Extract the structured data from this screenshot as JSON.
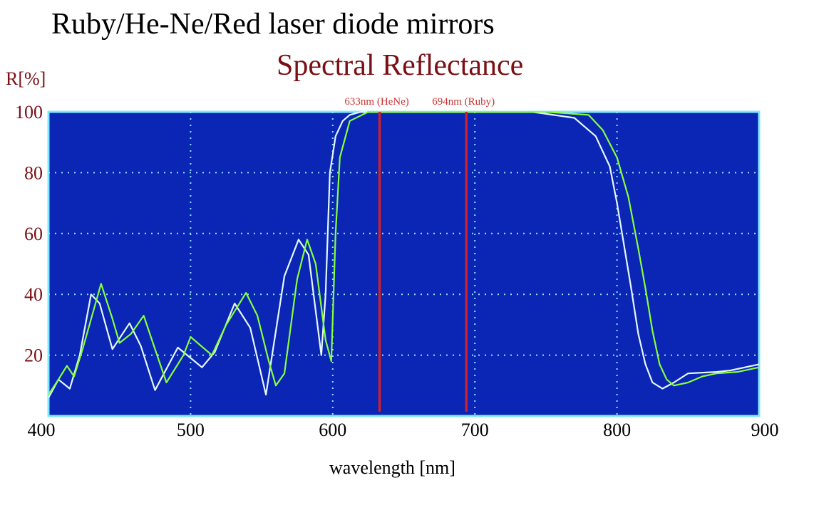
{
  "chart_data": {
    "type": "line",
    "title": "Ruby/He-Ne/Red laser diode mirrors",
    "subtitle": "Spectral Reflectance",
    "xlabel": "wavelength [nm]",
    "ylabel": "R[%]",
    "xlim": [
      400,
      900
    ],
    "ylim": [
      0,
      100
    ],
    "x_ticks": [
      400,
      500,
      600,
      700,
      800,
      900
    ],
    "y_ticks": [
      20,
      40,
      60,
      80,
      100
    ],
    "grid": true,
    "colors": {
      "plot_background": "#0b25b4",
      "grid": "#8fe6ff",
      "frame": "#7fe8ff",
      "series_white": "#e4f8ff",
      "series_green": "#86ff3c",
      "marker_lines": "#d0202a",
      "marker_labels": "#cc3333",
      "subtitle": "#7a0f14",
      "y_tick_labels": "#7a0f14"
    },
    "markers": [
      {
        "x": 633,
        "label": "633nm (HeNe)"
      },
      {
        "x": 694,
        "label": "694nm (Ruby)"
      }
    ],
    "series": [
      {
        "color": "#e4f8ff",
        "x": [
          400,
          407,
          415,
          422,
          430,
          436,
          445,
          457,
          465,
          475,
          491,
          508,
          517,
          531,
          542,
          553,
          566,
          576,
          583,
          592,
          595,
          598,
          602,
          607,
          612,
          620,
          640,
          700,
          740,
          770,
          785,
          795,
          800,
          805,
          810,
          815,
          820,
          825,
          832,
          840,
          850,
          870,
          880,
          900
        ],
        "y": [
          6,
          12,
          9,
          20,
          40,
          37,
          22,
          30.5,
          23,
          8.5,
          22.5,
          16,
          21,
          37,
          29,
          7,
          46,
          58,
          53,
          20,
          40,
          80,
          92,
          97,
          99,
          100,
          100,
          100,
          100,
          98,
          92,
          82,
          70,
          56,
          42,
          27,
          17,
          11,
          9,
          11,
          14,
          14.5,
          15,
          17
        ]
      },
      {
        "color": "#86ff3c",
        "x": [
          400,
          407,
          413,
          418,
          424,
          437,
          445,
          450,
          458,
          467,
          475,
          483,
          495,
          500,
          510,
          515,
          525,
          539,
          547,
          555,
          560,
          566,
          575,
          582,
          588,
          595,
          599,
          602,
          605,
          612,
          625,
          700,
          750,
          780,
          790,
          800,
          808,
          815,
          820,
          825,
          830,
          835,
          840,
          850,
          860,
          870,
          885,
          900
        ],
        "y": [
          7,
          12,
          16.5,
          13,
          22,
          43.5,
          32,
          24,
          27,
          33,
          22,
          11,
          20,
          26,
          22,
          20,
          30,
          40.5,
          33,
          18,
          10,
          14,
          45,
          58,
          50,
          25,
          18,
          60,
          85,
          97,
          100,
          100,
          100,
          99,
          94,
          85,
          72,
          55,
          42,
          28,
          17,
          12,
          10,
          11,
          13,
          14,
          14.5,
          16
        ]
      }
    ]
  }
}
